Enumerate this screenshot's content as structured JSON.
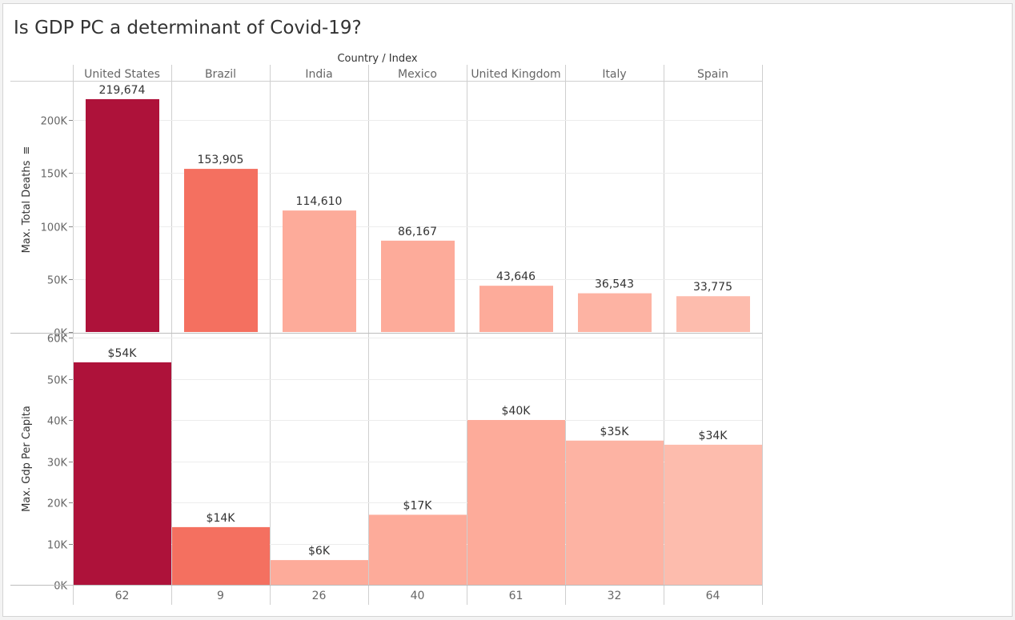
{
  "title": "Is GDP PC a determinant of Covid-19?",
  "chart_data": {
    "type": "bar",
    "column_header": "Country / Index",
    "categories": [
      "United States",
      "Brazil",
      "India",
      "Mexico",
      "United Kingdom",
      "Italy",
      "Spain"
    ],
    "index_values": [
      "62",
      "9",
      "26",
      "40",
      "61",
      "32",
      "64"
    ],
    "panels": [
      {
        "ylabel": "Max. Total Deaths",
        "ylim": [
          0,
          240000
        ],
        "ticks": [
          0,
          50000,
          100000,
          150000,
          200000
        ],
        "tick_labels": [
          "0K",
          "50K",
          "100K",
          "150K",
          "200K"
        ],
        "values": [
          219674,
          153905,
          114610,
          86167,
          43646,
          36543,
          33775
        ],
        "labels": [
          "219,674",
          "153,905",
          "114,610",
          "86,167",
          "43,646",
          "36,543",
          "33,775"
        ],
        "full_width_bars": false
      },
      {
        "ylabel": "Max. Gdp Per Capita",
        "ylim": [
          0,
          60000
        ],
        "ticks": [
          0,
          10000,
          20000,
          30000,
          40000,
          50000,
          60000
        ],
        "tick_labels": [
          "0K",
          "10K",
          "20K",
          "30K",
          "40K",
          "50K",
          "60K"
        ],
        "values": [
          54000,
          14000,
          6000,
          17000,
          40000,
          35000,
          34000
        ],
        "labels": [
          "$54K",
          "$14K",
          "$6K",
          "$17K",
          "$40K",
          "$35K",
          "$34K"
        ],
        "full_width_bars": true
      }
    ],
    "colors": [
      "#ae123a",
      "#f47060",
      "#fdab9a",
      "#fdab9a",
      "#fdab9a",
      "#fdb3a3",
      "#fdbcad"
    ],
    "grid": true
  }
}
